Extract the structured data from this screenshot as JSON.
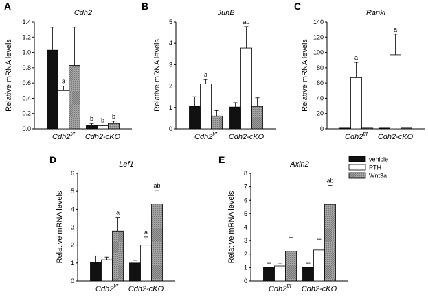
{
  "legend": {
    "entries": [
      {
        "name": "vehicle",
        "fill": "#111111",
        "pattern": "solid"
      },
      {
        "name": "PTH",
        "fill": "#ffffff",
        "pattern": "solid"
      },
      {
        "name": "Wnt3a",
        "fill": "#9a9a9a",
        "pattern": "hatch"
      }
    ]
  },
  "chart_data": [
    {
      "panel": "A",
      "title": "Cdh2",
      "type": "bar",
      "ylabel": "Relative mRNA levels",
      "ylim": [
        0,
        1.4
      ],
      "yticks": [
        "0.0",
        "0.2",
        "0.4",
        "0.6",
        "0.8",
        "1.0",
        "1.2",
        "1.4"
      ],
      "categories": [
        {
          "base": "Cdh2",
          "sup": "f/f"
        },
        {
          "base": "Cdh2-cKO",
          "sup": ""
        }
      ],
      "series": [
        {
          "name": "vehicle",
          "values": [
            1.03,
            0.05
          ],
          "errors": [
            0.3,
            0.02
          ],
          "labels": [
            "",
            "b"
          ]
        },
        {
          "name": "PTH",
          "values": [
            0.5,
            0.04
          ],
          "errors": [
            0.06,
            0.01
          ],
          "labels": [
            "a",
            "b"
          ]
        },
        {
          "name": "Wnt3a",
          "values": [
            0.83,
            0.07
          ],
          "errors": [
            0.5,
            0.03
          ],
          "labels": [
            "",
            "b"
          ]
        }
      ]
    },
    {
      "panel": "B",
      "title": "JunB",
      "type": "bar",
      "ylabel": "Relative mRNA levels",
      "ylim": [
        0,
        5
      ],
      "yticks": [
        "0",
        "1",
        "2",
        "3",
        "4",
        "5"
      ],
      "categories": [
        {
          "base": "Cdh2",
          "sup": "f/f"
        },
        {
          "base": "Cdh2-cKO",
          "sup": ""
        }
      ],
      "series": [
        {
          "name": "vehicle",
          "values": [
            1.05,
            1.02
          ],
          "errors": [
            0.45,
            0.2
          ],
          "labels": [
            "",
            ""
          ]
        },
        {
          "name": "PTH",
          "values": [
            2.1,
            3.78
          ],
          "errors": [
            0.2,
            1.0
          ],
          "labels": [
            "a",
            "ab"
          ]
        },
        {
          "name": "Wnt3a",
          "values": [
            0.6,
            1.05
          ],
          "errors": [
            0.25,
            0.4
          ],
          "labels": [
            "",
            ""
          ]
        }
      ]
    },
    {
      "panel": "C",
      "title": "Rankl",
      "type": "bar",
      "ylabel": "Relative mRNA levels",
      "ylim": [
        0,
        140
      ],
      "yticks": [
        "0",
        "20",
        "40",
        "60",
        "80",
        "100",
        "120",
        "140"
      ],
      "categories": [
        {
          "base": "Cdh2",
          "sup": "f/f"
        },
        {
          "base": "Cdh2-cKO",
          "sup": ""
        }
      ],
      "series": [
        {
          "name": "vehicle",
          "values": [
            1,
            1
          ],
          "errors": [
            0,
            0
          ],
          "labels": [
            "",
            ""
          ]
        },
        {
          "name": "PTH",
          "values": [
            67,
            97
          ],
          "errors": [
            20,
            27
          ],
          "labels": [
            "a",
            "a"
          ]
        },
        {
          "name": "Wnt3a",
          "values": [
            1,
            1
          ],
          "errors": [
            0,
            0
          ],
          "labels": [
            "",
            ""
          ]
        }
      ]
    },
    {
      "panel": "D",
      "title": "Lef1",
      "type": "bar",
      "ylabel": "Relative mRNA levels",
      "ylim": [
        0,
        6
      ],
      "yticks": [
        "0",
        "1",
        "2",
        "3",
        "4",
        "5",
        "6"
      ],
      "categories": [
        {
          "base": "Cdh2",
          "sup": "f/f"
        },
        {
          "base": "Cdh2-cKO",
          "sup": ""
        }
      ],
      "series": [
        {
          "name": "vehicle",
          "values": [
            1.05,
            1.0
          ],
          "errors": [
            0.35,
            0.15
          ],
          "labels": [
            "",
            ""
          ]
        },
        {
          "name": "PTH",
          "values": [
            1.18,
            2.0
          ],
          "errors": [
            0.15,
            0.45
          ],
          "labels": [
            "",
            "a"
          ]
        },
        {
          "name": "Wnt3a",
          "values": [
            2.78,
            4.3
          ],
          "errors": [
            0.75,
            0.75
          ],
          "labels": [
            "a",
            "ab"
          ]
        }
      ]
    },
    {
      "panel": "E",
      "title": "Axin2",
      "type": "bar",
      "ylabel": "Relative mRNA levels",
      "ylim": [
        0,
        8
      ],
      "yticks": [
        "0",
        "1",
        "2",
        "3",
        "4",
        "5",
        "6",
        "7",
        "8"
      ],
      "categories": [
        {
          "base": "Cdh2",
          "sup": "f/f"
        },
        {
          "base": "Cdh2-cKO",
          "sup": ""
        }
      ],
      "series": [
        {
          "name": "vehicle",
          "values": [
            1.02,
            1.02
          ],
          "errors": [
            0.3,
            0.3
          ],
          "labels": [
            "",
            ""
          ]
        },
        {
          "name": "PTH",
          "values": [
            1.12,
            2.3
          ],
          "errors": [
            0.15,
            0.8
          ],
          "labels": [
            "",
            ""
          ]
        },
        {
          "name": "Wnt3a",
          "values": [
            2.22,
            5.7
          ],
          "errors": [
            1.0,
            1.4
          ],
          "labels": [
            "",
            "ab"
          ]
        }
      ]
    }
  ]
}
